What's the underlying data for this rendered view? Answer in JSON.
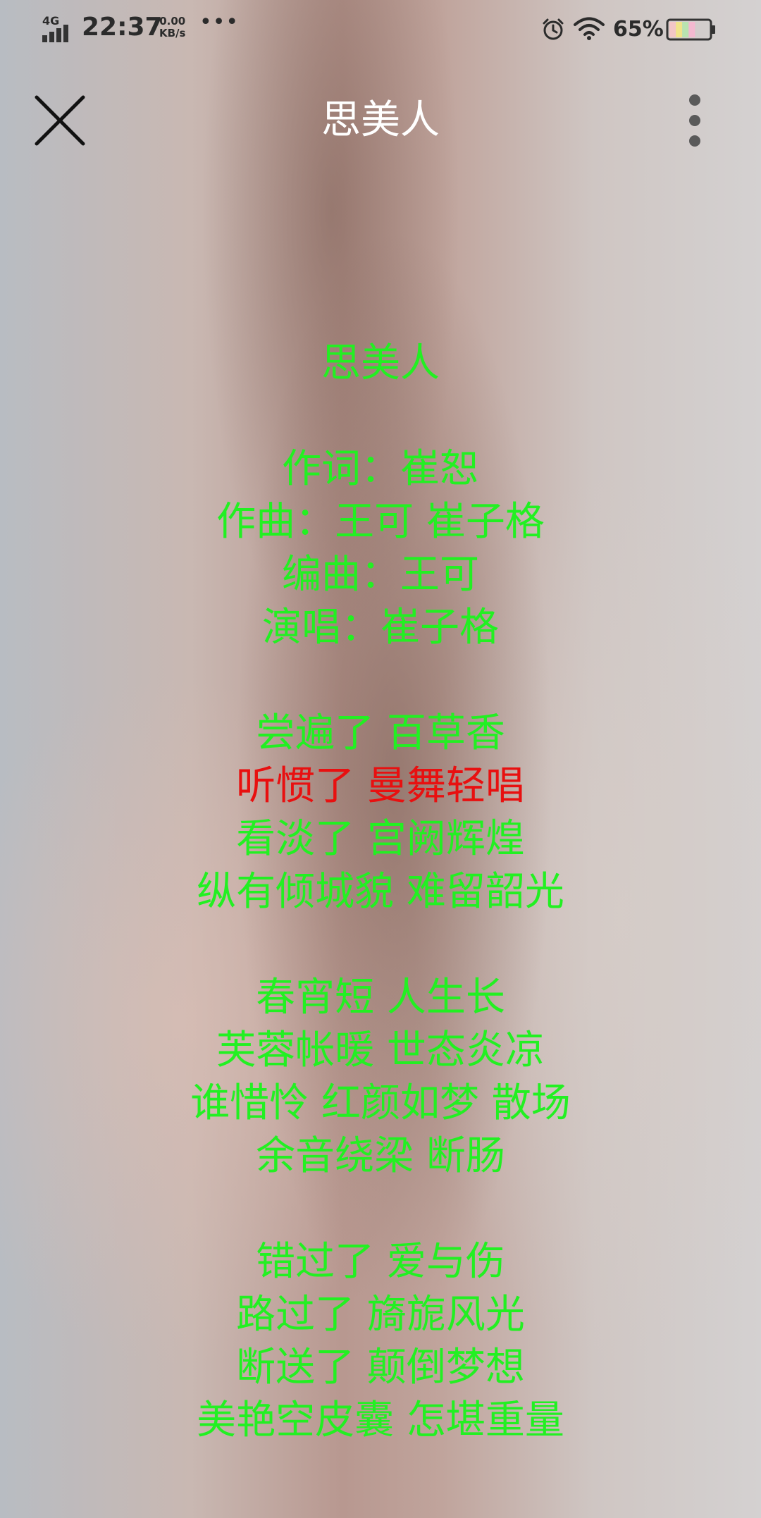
{
  "status_bar": {
    "network": "4G",
    "time": "22:37",
    "speed_value": "0.00",
    "speed_unit": "KB/s",
    "more_indicator": "•••",
    "battery_percent": "65%",
    "icons": [
      "signal-icon",
      "alarm-icon",
      "wifi-icon",
      "battery-icon"
    ],
    "battery_level": 0.65
  },
  "header": {
    "title": "思美人",
    "close_icon": "close-icon",
    "more_icon": "more-vertical-icon"
  },
  "colors": {
    "lyric_normal": "#22f022",
    "lyric_active": "#e81010",
    "title_color": "#ffffff"
  },
  "lyrics": [
    {
      "text": "思美人",
      "active": false
    },
    {
      "text": "",
      "active": false
    },
    {
      "text": "作词：崔恕",
      "active": false
    },
    {
      "text": "作曲：王可 崔子格",
      "active": false
    },
    {
      "text": "编曲：王可",
      "active": false
    },
    {
      "text": "演唱：崔子格",
      "active": false
    },
    {
      "text": "",
      "active": false
    },
    {
      "text": "尝遍了 百草香",
      "active": false
    },
    {
      "text": "听惯了 曼舞轻唱",
      "active": true
    },
    {
      "text": "看淡了 宫阙辉煌",
      "active": false
    },
    {
      "text": "纵有倾城貌 难留韶光",
      "active": false
    },
    {
      "text": "",
      "active": false
    },
    {
      "text": "春宵短 人生长",
      "active": false
    },
    {
      "text": "芙蓉帐暖 世态炎凉",
      "active": false
    },
    {
      "text": "谁惜怜 红颜如梦 散场",
      "active": false
    },
    {
      "text": "余音绕梁 断肠",
      "active": false
    },
    {
      "text": "",
      "active": false
    },
    {
      "text": "错过了 爱与伤",
      "active": false
    },
    {
      "text": "路过了 旖旎风光",
      "active": false
    },
    {
      "text": "断送了 颠倒梦想",
      "active": false
    },
    {
      "text": "美艳空皮囊 怎堪重量",
      "active": false
    }
  ]
}
